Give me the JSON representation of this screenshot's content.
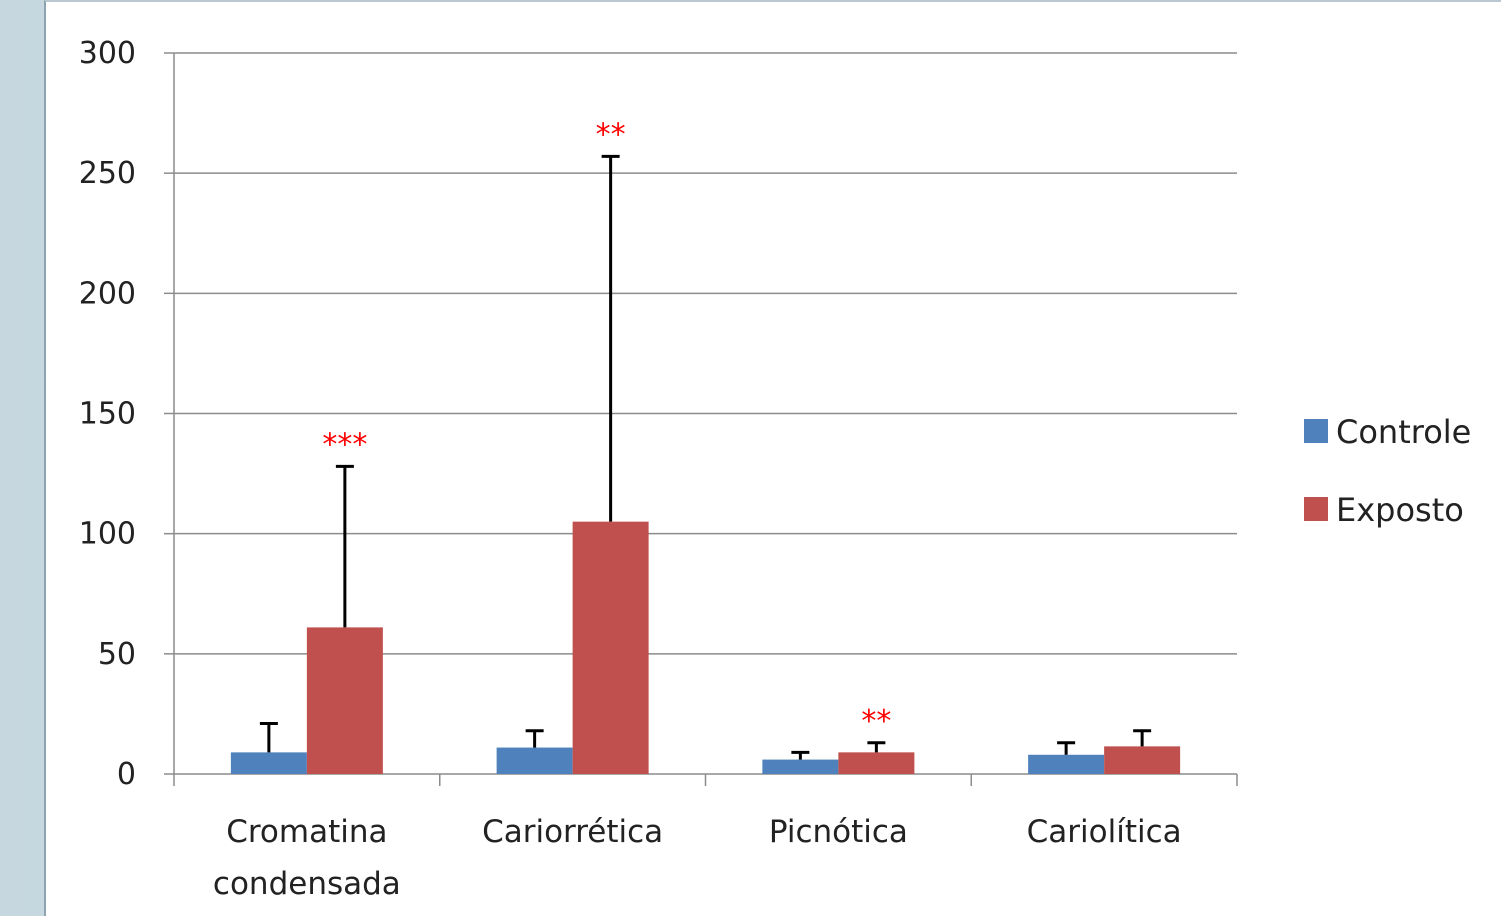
{
  "chart_data": {
    "type": "bar",
    "title": "",
    "xlabel": "",
    "ylabel": "",
    "ylim": [
      0,
      300
    ],
    "yticks": [
      0,
      50,
      100,
      150,
      200,
      250,
      300
    ],
    "grid": true,
    "legend_position": "right",
    "categories": [
      [
        "Cromatina",
        "condensada"
      ],
      [
        "Cariorrética"
      ],
      [
        "Picnótica"
      ],
      [
        "Cariolítica"
      ]
    ],
    "series": [
      {
        "name": "Controle",
        "color": "#4f81bd",
        "values": [
          9,
          11,
          6,
          8
        ],
        "error_upper": [
          21,
          18,
          9,
          13
        ]
      },
      {
        "name": "Exposto",
        "color": "#c0504d",
        "values": [
          61,
          105,
          9,
          11.5
        ],
        "error_upper": [
          128,
          257,
          13,
          18
        ]
      }
    ],
    "annotations": [
      {
        "category_index": 0,
        "series_index": 1,
        "text": "***"
      },
      {
        "category_index": 1,
        "series_index": 1,
        "text": "**"
      },
      {
        "category_index": 2,
        "series_index": 1,
        "text": "**"
      }
    ]
  }
}
